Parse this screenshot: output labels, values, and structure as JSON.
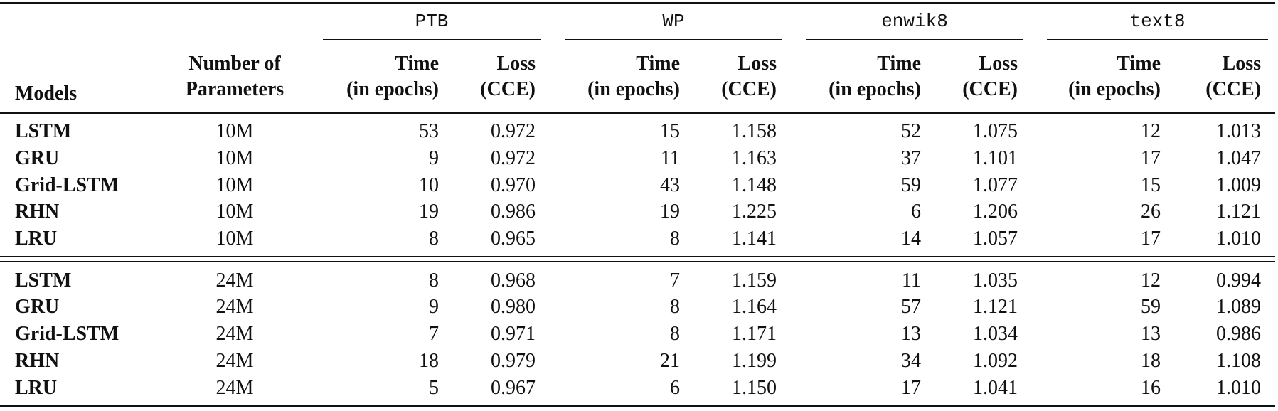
{
  "headers": {
    "models": "Models",
    "params_line1": "Number of",
    "params_line2": "Parameters",
    "time_line1": "Time",
    "time_line2": "(in epochs)",
    "loss_line1": "Loss",
    "loss_line2": "(CCE)"
  },
  "datasets": [
    "PTB",
    "WP",
    "enwik8",
    "text8"
  ],
  "groups": [
    {
      "rows": [
        {
          "model": "LSTM",
          "params": "10M",
          "values": [
            "53",
            "0.972",
            "15",
            "1.158",
            "52",
            "1.075",
            "12",
            "1.013"
          ]
        },
        {
          "model": "GRU",
          "params": "10M",
          "values": [
            "9",
            "0.972",
            "11",
            "1.163",
            "37",
            "1.101",
            "17",
            "1.047"
          ]
        },
        {
          "model": "Grid-LSTM",
          "params": "10M",
          "values": [
            "10",
            "0.970",
            "43",
            "1.148",
            "59",
            "1.077",
            "15",
            "1.009"
          ]
        },
        {
          "model": "RHN",
          "params": "10M",
          "values": [
            "19",
            "0.986",
            "19",
            "1.225",
            "6",
            "1.206",
            "26",
            "1.121"
          ]
        },
        {
          "model": "LRU",
          "params": "10M",
          "values": [
            "8",
            "0.965",
            "8",
            "1.141",
            "14",
            "1.057",
            "17",
            "1.010"
          ]
        }
      ]
    },
    {
      "rows": [
        {
          "model": "LSTM",
          "params": "24M",
          "values": [
            "8",
            "0.968",
            "7",
            "1.159",
            "11",
            "1.035",
            "12",
            "0.994"
          ]
        },
        {
          "model": "GRU",
          "params": "24M",
          "values": [
            "9",
            "0.980",
            "8",
            "1.164",
            "57",
            "1.121",
            "59",
            "1.089"
          ]
        },
        {
          "model": "Grid-LSTM",
          "params": "24M",
          "values": [
            "7",
            "0.971",
            "8",
            "1.171",
            "13",
            "1.034",
            "13",
            "0.986"
          ]
        },
        {
          "model": "RHN",
          "params": "24M",
          "values": [
            "18",
            "0.979",
            "21",
            "1.199",
            "34",
            "1.092",
            "18",
            "1.108"
          ]
        },
        {
          "model": "LRU",
          "params": "24M",
          "values": [
            "5",
            "0.967",
            "6",
            "1.150",
            "17",
            "1.041",
            "16",
            "1.010"
          ]
        }
      ]
    }
  ]
}
